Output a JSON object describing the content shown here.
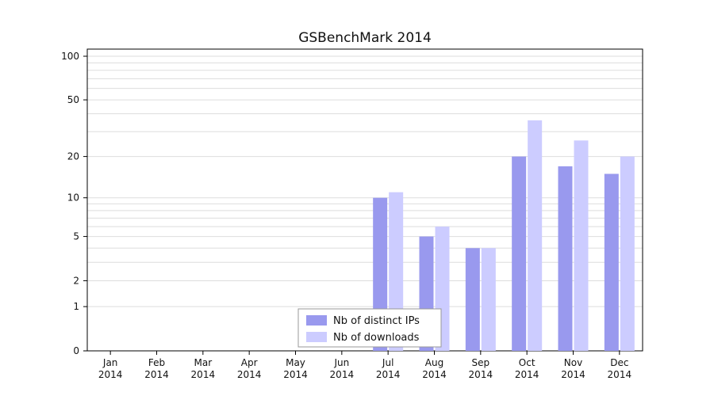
{
  "title": "GSBenchMark 2014",
  "chart_data": {
    "type": "bar",
    "scale": "log1p",
    "categories": [
      "Jan",
      "Feb",
      "Mar",
      "Apr",
      "May",
      "Jun",
      "Jul",
      "Aug",
      "Sep",
      "Oct",
      "Nov",
      "Dec"
    ],
    "category_year": "2014",
    "series": [
      {
        "name": "Nb of distinct IPs",
        "color": "#9999ee",
        "values": [
          0,
          0,
          0,
          0,
          0,
          0,
          10,
          5,
          4,
          20,
          17,
          15
        ]
      },
      {
        "name": "Nb of downloads",
        "color": "#ccccff",
        "values": [
          0,
          0,
          0,
          0,
          0,
          0,
          11,
          6,
          4,
          36,
          26,
          20
        ]
      }
    ],
    "y_ticks": [
      0,
      1,
      2,
      5,
      10,
      20,
      50,
      100
    ],
    "minor_gridlines": [
      1,
      2,
      3,
      4,
      5,
      6,
      7,
      8,
      9,
      10,
      20,
      30,
      40,
      50,
      60,
      70,
      80,
      90,
      100
    ],
    "ylim": [
      0,
      110
    ],
    "grid": "horizontal",
    "legend_position": "bottom-center",
    "colors": {
      "grid": "#dddddd",
      "axis": "#000000",
      "tick_text": "#111111",
      "legend_border": "#999999",
      "legend_bg": "#ffffff"
    }
  }
}
